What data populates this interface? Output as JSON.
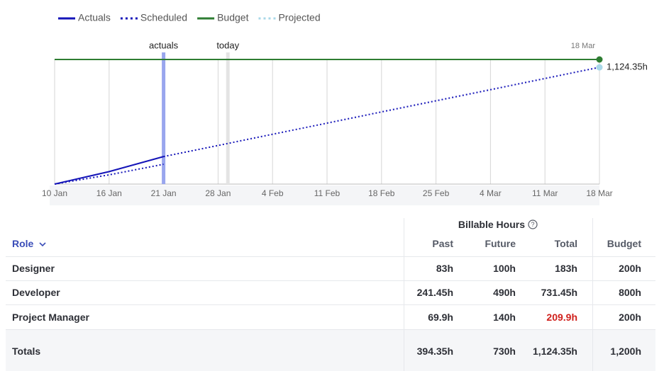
{
  "chart_data": {
    "type": "line",
    "categories": [
      "10 Jan",
      "16 Jan",
      "21 Jan",
      "28 Jan",
      "4 Feb",
      "11 Feb",
      "18 Feb",
      "25 Feb",
      "4 Mar",
      "11 Mar",
      "18 Mar"
    ],
    "ylim": [
      0,
      1200
    ],
    "grid": true,
    "series": [
      {
        "name": "Actuals",
        "color": "#1414b8",
        "style": "solid",
        "values": [
          0,
          120,
          265,
          null,
          null,
          null,
          null,
          null,
          null,
          null,
          null
        ]
      },
      {
        "name": "Scheduled",
        "color": "#1414b8",
        "style": "dotted",
        "values": [
          0,
          89,
          191,
          null,
          null,
          null,
          null,
          null,
          null,
          null,
          null
        ]
      },
      {
        "name": "Budget",
        "color": "#2e7d32",
        "style": "solid",
        "marker": "end",
        "values": [
          1200,
          1200,
          1200,
          1200,
          1200,
          1200,
          1200,
          1200,
          1200,
          1200,
          1200
        ]
      },
      {
        "name": "Projected",
        "color": "#a8d8e8",
        "line_color": "#1414b8",
        "style": "dotted",
        "marker": "end",
        "values": [
          null,
          null,
          265,
          372,
          480,
          587,
          695,
          802,
          909,
          1017,
          1124.35
        ],
        "value_labels": [
          null,
          null,
          null,
          null,
          null,
          null,
          null,
          null,
          null,
          null,
          "1,124.35h"
        ]
      }
    ],
    "annotations": [
      {
        "label": "actuals",
        "x": 2,
        "color": "#99a6ee"
      },
      {
        "label": "today",
        "x": 3.18,
        "color": "#e4e4e4"
      },
      {
        "label": "18 Mar",
        "x": 10
      }
    ]
  },
  "table": {
    "group_header": "Billable Hours",
    "columns": [
      "Role",
      "Past",
      "Future",
      "Total",
      "Budget"
    ],
    "rows": [
      {
        "cells": [
          "Designer",
          "83h",
          "100h",
          "183h",
          "200h"
        ]
      },
      {
        "cells": [
          "Developer",
          "241.45h",
          "490h",
          "731.45h",
          "800h"
        ]
      },
      {
        "cells": [
          "Project Manager",
          "69.9h",
          "140h",
          "209.9h",
          "200h"
        ],
        "alert_cell": 3
      }
    ],
    "totals": {
      "cells": [
        "Totals",
        "394.35h",
        "730h",
        "1,124.35h",
        "1,200h"
      ]
    },
    "alert_color": "#d0201c"
  }
}
